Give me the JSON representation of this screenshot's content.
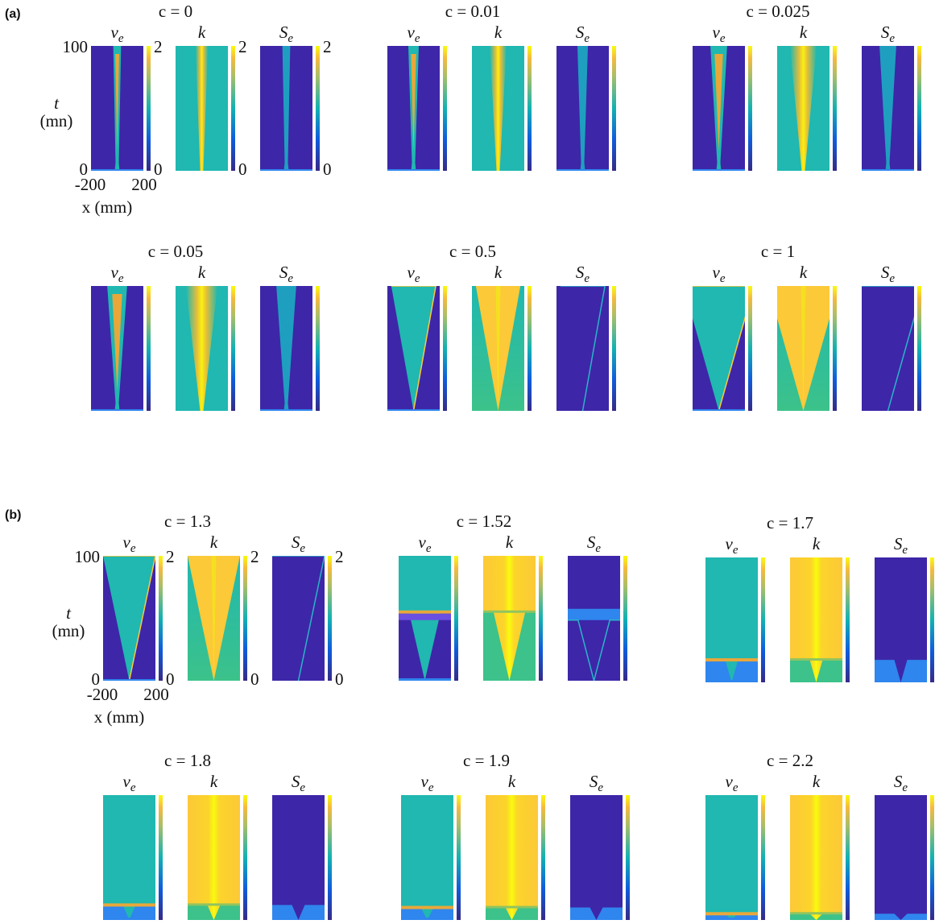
{
  "figure": {
    "panels": [
      {
        "label": "(a)",
        "subfigures": [
          {
            "title": "c = 0"
          },
          {
            "title": "c = 0.01"
          },
          {
            "title": "c = 0.025"
          },
          {
            "title": "c = 0.05"
          },
          {
            "title": "c = 0.5"
          },
          {
            "title": "c = 1"
          }
        ]
      },
      {
        "label": "(b)",
        "subfigures": [
          {
            "title": "c = 1.3"
          },
          {
            "title": "c = 1.52"
          },
          {
            "title": "c = 1.7"
          },
          {
            "title": "c = 1.8"
          },
          {
            "title": "c = 1.9"
          },
          {
            "title": "c = 2.2"
          }
        ]
      }
    ],
    "plot_titles": [
      {
        "symbol": "v",
        "subscript": "e"
      },
      {
        "symbol": "k"
      },
      {
        "symbol": "S",
        "subscript": "e"
      }
    ],
    "axes": {
      "yticks": [
        100,
        0
      ],
      "ylabel": [
        "t",
        "(mn)"
      ],
      "xticks": [
        -200,
        200
      ],
      "xlabel": "x (mm)",
      "colorbar_ticks": [
        2,
        0
      ]
    }
  }
}
